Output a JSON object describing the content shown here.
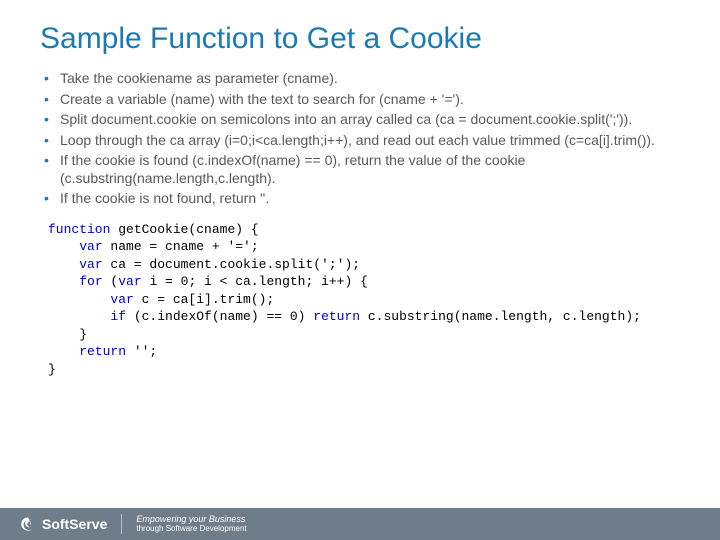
{
  "colors": {
    "title": "#1b7ab5",
    "bullet_text": "#595959",
    "bullet_marker": "#1b7ab5",
    "code_text": "#000000",
    "keyword": "#0000c8",
    "identifier": "#000000",
    "footer_bg": "#6f7c8a",
    "footer_text": "#ffffff"
  },
  "typography": {
    "title_fontsize": 30,
    "bullet_fontsize": 14,
    "code_fontsize": 13,
    "footer_brand_fontsize": 14,
    "footer_tag_fontsize": 8
  },
  "title": "Sample Function to Get a Cookie",
  "bullets": [
    "Take the cookiename as parameter (cname).",
    "Create a variable (name) with the text to search for (cname + '=').",
    "Split document.cookie on semicolons into an array called ca (ca = document.cookie.split(';')).",
    "Loop through the ca array (i=0;i<ca.length;i++), and read out each value trimmed (c=ca[i].trim()).",
    "If the cookie is found (c.indexOf(name) == 0), return the value of the cookie (c.substring(name.length,c.length).",
    "If the cookie is not found, return ''."
  ],
  "code": {
    "tokens": [
      [
        {
          "t": "function",
          "c": "kw"
        },
        {
          "t": " getCookie(cname) {",
          "c": "p"
        }
      ],
      [
        {
          "t": "    ",
          "c": "p"
        },
        {
          "t": "var",
          "c": "kw"
        },
        {
          "t": " name = cname + '=';",
          "c": "p"
        }
      ],
      [
        {
          "t": "    ",
          "c": "p"
        },
        {
          "t": "var",
          "c": "kw"
        },
        {
          "t": " ca = document.cookie.split(';');",
          "c": "p"
        }
      ],
      [
        {
          "t": "    ",
          "c": "p"
        },
        {
          "t": "for",
          "c": "kw"
        },
        {
          "t": " (",
          "c": "p"
        },
        {
          "t": "var",
          "c": "kw"
        },
        {
          "t": " i = 0; i < ca.length; i++) {",
          "c": "p"
        }
      ],
      [
        {
          "t": "        ",
          "c": "p"
        },
        {
          "t": "var",
          "c": "kw"
        },
        {
          "t": " c = ca[i].trim();",
          "c": "p"
        }
      ],
      [
        {
          "t": "        ",
          "c": "p"
        },
        {
          "t": "if",
          "c": "kw"
        },
        {
          "t": " (c.indexOf(name) == 0) ",
          "c": "p"
        },
        {
          "t": "return",
          "c": "kw"
        },
        {
          "t": " c.substring(name.length, c.length);",
          "c": "p"
        }
      ],
      [
        {
          "t": "    }",
          "c": "p"
        }
      ],
      [
        {
          "t": "    ",
          "c": "p"
        },
        {
          "t": "return",
          "c": "kw"
        },
        {
          "t": " '';",
          "c": "p"
        }
      ],
      [
        {
          "t": "}",
          "c": "p"
        }
      ]
    ]
  },
  "footer": {
    "brand": "SoftServe",
    "tag1": "Empowering your Business",
    "tag2": "through Software Development"
  }
}
